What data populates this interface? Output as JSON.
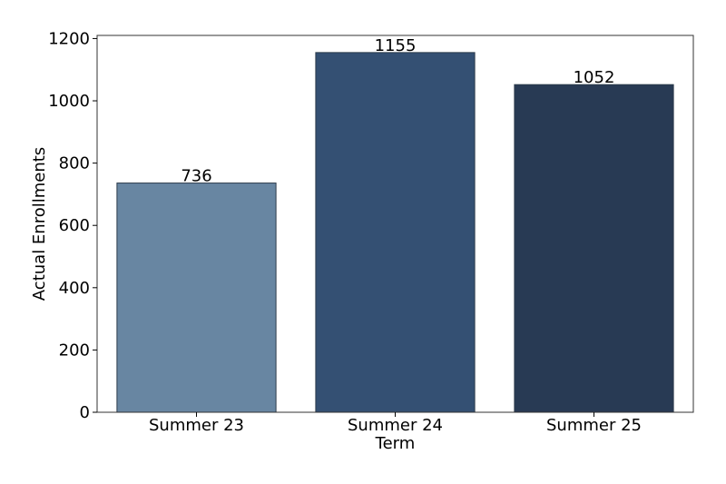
{
  "chart_data": {
    "type": "bar",
    "title": "",
    "xlabel": "Term",
    "ylabel": "Actual Enrollments",
    "categories": [
      "Summer 23",
      "Summer 24",
      "Summer 25"
    ],
    "values": [
      736,
      1155,
      1052
    ],
    "data_labels": [
      "736",
      "1155",
      "1052"
    ],
    "bar_colors": [
      "#6886a2",
      "#345073",
      "#283a54"
    ],
    "ylim": [
      0,
      1210
    ],
    "yticks": [
      0,
      200,
      400,
      600,
      800,
      1000,
      1200
    ],
    "grid": false,
    "legend": "none"
  }
}
